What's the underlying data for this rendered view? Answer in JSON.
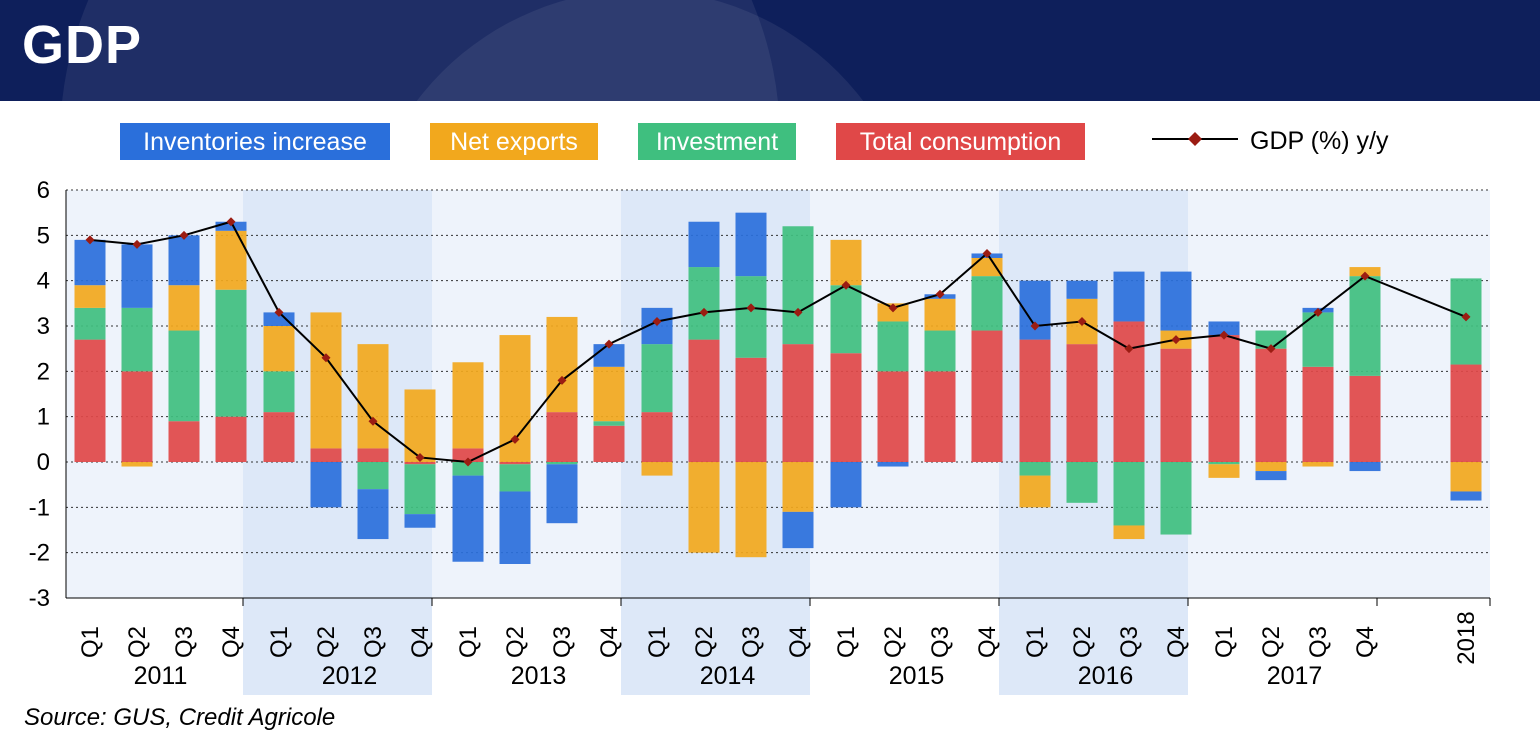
{
  "header": {
    "title": "GDP"
  },
  "source": "Source: GUS, Credit Agricole",
  "colors": {
    "inventories": "#2a6fdb",
    "net_exports": "#f2a81d",
    "investment": "#3fbf7f",
    "consumption": "#e04848",
    "gdp_line": "#000000",
    "gdp_marker": "#9b1c12",
    "header_bg": "#0e1f5b",
    "band_shade": "#dde8f8",
    "plot_bg": "#eef3fb"
  },
  "chart_data": {
    "type": "bar",
    "stacked": true,
    "ylim": [
      -3,
      6
    ],
    "yticks": [
      -3,
      -2,
      -1,
      0,
      1,
      2,
      3,
      4,
      5,
      6
    ],
    "grid": true,
    "legend_position": "top",
    "categories": [
      "Q1",
      "Q2",
      "Q3",
      "Q4",
      "Q1",
      "Q2",
      "Q3",
      "Q4",
      "Q1",
      "Q2",
      "Q3",
      "Q4",
      "Q1",
      "Q2",
      "Q3",
      "Q4",
      "Q1",
      "Q2",
      "Q3",
      "Q4",
      "Q1",
      "Q2",
      "Q3",
      "Q4",
      "Q1",
      "Q2",
      "Q3",
      "Q4",
      "2018"
    ],
    "year_groups": [
      {
        "label": "2011",
        "start": 0,
        "count": 4,
        "shaded": false
      },
      {
        "label": "2012",
        "start": 4,
        "count": 4,
        "shaded": true
      },
      {
        "label": "2013",
        "start": 8,
        "count": 4,
        "shaded": false
      },
      {
        "label": "2014",
        "start": 12,
        "count": 4,
        "shaded": true
      },
      {
        "label": "2015",
        "start": 16,
        "count": 4,
        "shaded": false
      },
      {
        "label": "2016",
        "start": 20,
        "count": 4,
        "shaded": true
      },
      {
        "label": "2017",
        "start": 24,
        "count": 4,
        "shaded": false
      }
    ],
    "series": [
      {
        "key": "consumption",
        "name": "Total consumption",
        "values": [
          2.7,
          2.0,
          0.9,
          1.0,
          1.1,
          0.3,
          0.3,
          -0.05,
          0.3,
          -0.05,
          1.1,
          0.8,
          1.1,
          2.7,
          2.3,
          2.6,
          2.4,
          2.0,
          2.0,
          2.9,
          2.7,
          2.6,
          3.1,
          2.5,
          2.8,
          2.5,
          2.1,
          1.9,
          2.15
        ]
      },
      {
        "key": "investment",
        "name": "Investment",
        "values": [
          0.7,
          1.4,
          2.0,
          2.8,
          0.9,
          0.0,
          -0.6,
          -1.1,
          -0.3,
          -0.6,
          -0.05,
          0.1,
          1.5,
          1.6,
          1.8,
          2.6,
          1.5,
          1.1,
          0.9,
          1.2,
          -0.3,
          -0.9,
          -1.4,
          -1.6,
          -0.05,
          0.4,
          1.2,
          2.2,
          1.9
        ]
      },
      {
        "key": "net_exports",
        "name": "Net exports",
        "values": [
          0.5,
          -0.1,
          1.0,
          1.3,
          1.0,
          3.0,
          2.3,
          1.6,
          1.9,
          2.8,
          2.1,
          1.2,
          -0.3,
          -2.0,
          -2.1,
          -1.1,
          1.0,
          0.4,
          0.7,
          0.4,
          -0.7,
          1.0,
          -0.3,
          0.4,
          -0.3,
          -0.2,
          -0.1,
          0.2,
          -0.65
        ]
      },
      {
        "key": "inventories",
        "name": "Inventories increase",
        "values": [
          1.0,
          1.4,
          1.1,
          0.2,
          0.3,
          -1.0,
          -1.1,
          -0.3,
          -1.9,
          -1.6,
          -1.3,
          0.5,
          0.8,
          1.0,
          1.4,
          -0.8,
          -1.0,
          -0.1,
          0.1,
          0.1,
          1.3,
          0.4,
          1.1,
          1.3,
          0.3,
          -0.2,
          0.1,
          -0.2,
          -0.2
        ]
      }
    ],
    "line": {
      "name": "GDP (%)  y/y",
      "values": [
        4.9,
        4.8,
        5.0,
        5.3,
        3.3,
        2.3,
        0.9,
        0.1,
        0.0,
        0.5,
        1.8,
        2.6,
        3.1,
        3.3,
        3.4,
        3.3,
        3.9,
        3.4,
        3.7,
        4.6,
        3.0,
        3.1,
        2.5,
        2.7,
        2.8,
        2.5,
        3.3,
        4.1,
        3.2
      ]
    },
    "legend": [
      {
        "key": "inventories",
        "label": "Inventories increase"
      },
      {
        "key": "net_exports",
        "label": "Net exports"
      },
      {
        "key": "investment",
        "label": "Investment"
      },
      {
        "key": "consumption",
        "label": "Total consumption"
      }
    ]
  }
}
